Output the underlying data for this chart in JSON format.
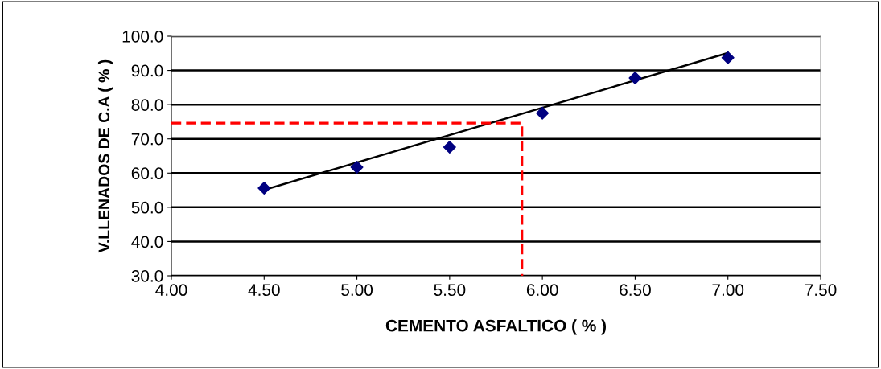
{
  "chart_data": {
    "type": "scatter",
    "xlabel": "CEMENTO ASFALTICO ( % )",
    "ylabel": "V.LLENADOS DE C.A ( % )",
    "xlim": [
      4.0,
      7.5
    ],
    "xticks": [
      {
        "value": 4.0,
        "label": "4.00"
      },
      {
        "value": 4.5,
        "label": "4.50"
      },
      {
        "value": 5.0,
        "label": "5.00"
      },
      {
        "value": 5.5,
        "label": "5.50"
      },
      {
        "value": 6.0,
        "label": "6.00"
      },
      {
        "value": 6.5,
        "label": "6.50"
      },
      {
        "value": 7.0,
        "label": "7.00"
      },
      {
        "value": 7.5,
        "label": "7.50"
      }
    ],
    "ylim": [
      30,
      100
    ],
    "yticks": [
      {
        "value": 30,
        "label": "30.0"
      },
      {
        "value": 40,
        "label": "40.0"
      },
      {
        "value": 50,
        "label": "50.0"
      },
      {
        "value": 60,
        "label": "60.0"
      },
      {
        "value": 70,
        "label": "70.0"
      },
      {
        "value": 80,
        "label": "80.0"
      },
      {
        "value": 90,
        "label": "90.0"
      },
      {
        "value": 100,
        "label": "100.0"
      }
    ],
    "grid": "y",
    "legend": false,
    "series": [
      {
        "color": "#000080",
        "marker": "diamond",
        "x": [
          4.5,
          5.0,
          5.5,
          6.0,
          6.5,
          7.0
        ],
        "values": [
          55.6,
          61.7,
          67.6,
          77.5,
          87.8,
          93.7
        ]
      },
      {
        "type": "line",
        "color": "#000000",
        "marker": "none",
        "line_style": "solid",
        "x": [
          4.5,
          7.0
        ],
        "values": [
          55.1,
          95.1
        ]
      },
      {
        "type": "line",
        "color": "#ff0000",
        "marker": "none",
        "line_style": "dashed",
        "x": [
          4.0,
          5.89,
          5.89
        ],
        "values": [
          74.6,
          74.6,
          30
        ]
      }
    ]
  }
}
